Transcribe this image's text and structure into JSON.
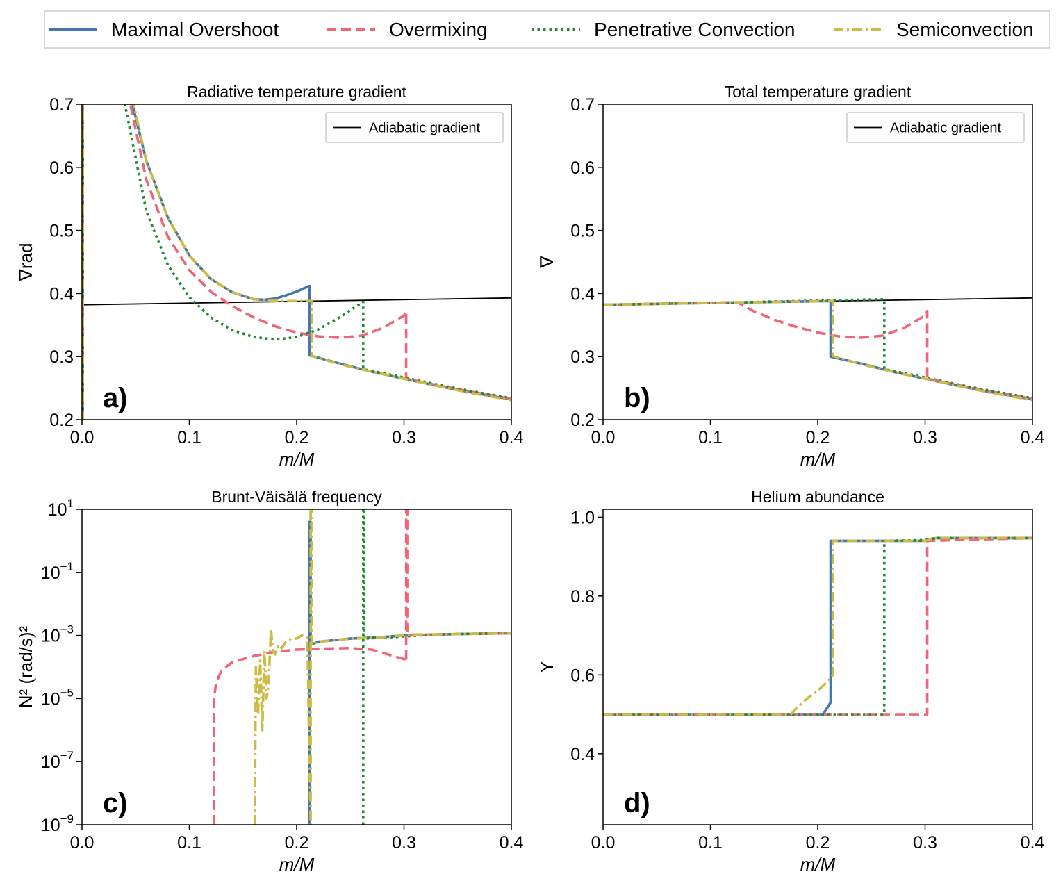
{
  "figure": {
    "legend": {
      "entries": [
        {
          "label": "Maximal Overshoot",
          "color": "#4477aa",
          "dash": "solid"
        },
        {
          "label": "Overmixing",
          "color": "#ee6677",
          "dash": "dashed"
        },
        {
          "label": "Penetrative Convection",
          "color": "#228833",
          "dash": "dotted"
        },
        {
          "label": "Semiconvection",
          "color": "#ccbb44",
          "dash": "dashdot"
        }
      ]
    }
  },
  "chart_data": [
    {
      "type": "line",
      "panel_label": "a)",
      "title": "Radiative temperature gradient",
      "xlabel": "m/M",
      "ylabel": "∇rad",
      "xlim": [
        0.0,
        0.4
      ],
      "ylim": [
        0.2,
        0.7
      ],
      "xticks": [
        "0.0",
        "0.1",
        "0.2",
        "0.3",
        "0.4"
      ],
      "yticks": [
        "0.2",
        "0.3",
        "0.4",
        "0.5",
        "0.6",
        "0.7"
      ],
      "legend": {
        "label": "Adiabatic gradient",
        "placement": "top-right"
      },
      "reference_line": {
        "name": "Adiabatic gradient",
        "color": "#000000",
        "x": [
          0.0,
          0.4
        ],
        "y": [
          0.382,
          0.393
        ]
      },
      "series": [
        {
          "name": "Maximal Overshoot",
          "x": [
            0.0,
            0.0008,
            0.0008,
            0.047,
            0.06,
            0.08,
            0.1,
            0.12,
            0.14,
            0.16,
            0.17,
            0.18,
            0.19,
            0.2,
            0.212,
            0.212,
            0.24,
            0.27,
            0.3,
            0.33,
            0.36,
            0.4
          ],
          "y": [
            0.2,
            0.2,
            0.72,
            0.7,
            0.61,
            0.52,
            0.46,
            0.423,
            0.402,
            0.391,
            0.39,
            0.392,
            0.397,
            0.403,
            0.412,
            0.302,
            0.289,
            0.276,
            0.265,
            0.254,
            0.244,
            0.232
          ]
        },
        {
          "name": "Overmixing",
          "x": [
            0.0,
            0.0008,
            0.0008,
            0.045,
            0.06,
            0.08,
            0.1,
            0.12,
            0.14,
            0.16,
            0.18,
            0.2,
            0.22,
            0.24,
            0.26,
            0.28,
            0.3,
            0.302,
            0.302,
            0.33,
            0.36,
            0.4
          ],
          "y": [
            0.2,
            0.2,
            0.72,
            0.7,
            0.58,
            0.49,
            0.437,
            0.403,
            0.38,
            0.362,
            0.348,
            0.338,
            0.332,
            0.33,
            0.333,
            0.345,
            0.365,
            0.372,
            0.265,
            0.255,
            0.245,
            0.233
          ]
        },
        {
          "name": "Penetrative Convection",
          "x": [
            0.0,
            0.0008,
            0.0008,
            0.04,
            0.06,
            0.08,
            0.1,
            0.12,
            0.14,
            0.16,
            0.18,
            0.2,
            0.22,
            0.24,
            0.262,
            0.262,
            0.3,
            0.33,
            0.36,
            0.4
          ],
          "y": [
            0.2,
            0.2,
            0.72,
            0.7,
            0.53,
            0.445,
            0.394,
            0.362,
            0.342,
            0.331,
            0.327,
            0.331,
            0.343,
            0.362,
            0.387,
            0.28,
            0.267,
            0.256,
            0.246,
            0.234
          ]
        },
        {
          "name": "Semiconvection",
          "x": [
            0.0,
            0.0008,
            0.0008,
            0.048,
            0.06,
            0.08,
            0.1,
            0.12,
            0.14,
            0.16,
            0.17,
            0.19,
            0.2,
            0.214,
            0.214,
            0.24,
            0.27,
            0.3,
            0.33,
            0.36,
            0.4
          ],
          "y": [
            0.2,
            0.2,
            0.72,
            0.7,
            0.61,
            0.52,
            0.46,
            0.423,
            0.402,
            0.391,
            0.389,
            0.388,
            0.388,
            0.388,
            0.301,
            0.288,
            0.276,
            0.265,
            0.254,
            0.243,
            0.231
          ]
        }
      ]
    },
    {
      "type": "line",
      "panel_label": "b)",
      "title": "Total temperature gradient",
      "xlabel": "m/M",
      "ylabel": "∇",
      "xlim": [
        0.0,
        0.4
      ],
      "ylim": [
        0.2,
        0.7
      ],
      "xticks": [
        "0.0",
        "0.1",
        "0.2",
        "0.3",
        "0.4"
      ],
      "yticks": [
        "0.2",
        "0.3",
        "0.4",
        "0.5",
        "0.6",
        "0.7"
      ],
      "legend": {
        "label": "Adiabatic gradient",
        "placement": "top-right"
      },
      "reference_line": {
        "name": "Adiabatic gradient",
        "color": "#000000",
        "x": [
          0.0,
          0.4
        ],
        "y": [
          0.382,
          0.393
        ]
      },
      "series": [
        {
          "name": "Maximal Overshoot",
          "x": [
            0.0,
            0.1,
            0.212,
            0.212,
            0.24,
            0.27,
            0.3,
            0.33,
            0.36,
            0.4
          ],
          "y": [
            0.382,
            0.385,
            0.388,
            0.3,
            0.289,
            0.276,
            0.265,
            0.254,
            0.244,
            0.232
          ]
        },
        {
          "name": "Overmixing",
          "x": [
            0.0,
            0.1,
            0.125,
            0.14,
            0.16,
            0.18,
            0.2,
            0.22,
            0.24,
            0.26,
            0.28,
            0.3,
            0.302,
            0.302,
            0.33,
            0.36,
            0.4
          ],
          "y": [
            0.382,
            0.385,
            0.386,
            0.372,
            0.358,
            0.347,
            0.338,
            0.332,
            0.33,
            0.333,
            0.345,
            0.365,
            0.372,
            0.265,
            0.255,
            0.245,
            0.233
          ]
        },
        {
          "name": "Penetrative Convection",
          "x": [
            0.0,
            0.1,
            0.21,
            0.262,
            0.262,
            0.3,
            0.33,
            0.36,
            0.4
          ],
          "y": [
            0.382,
            0.385,
            0.389,
            0.391,
            0.28,
            0.267,
            0.256,
            0.246,
            0.234
          ]
        },
        {
          "name": "Semiconvection",
          "x": [
            0.0,
            0.1,
            0.214,
            0.214,
            0.24,
            0.27,
            0.3,
            0.33,
            0.36,
            0.4
          ],
          "y": [
            0.382,
            0.385,
            0.388,
            0.301,
            0.288,
            0.276,
            0.265,
            0.254,
            0.243,
            0.231
          ]
        }
      ]
    },
    {
      "type": "line",
      "panel_label": "c)",
      "title": "Brunt-Väisälä frequency",
      "xlabel": "m/M",
      "ylabel": "N² (rad/s)²",
      "xlim": [
        0.0,
        0.4
      ],
      "ylim": [
        -9,
        1
      ],
      "yscale": "log10",
      "ylim_note": "log10 of N²",
      "xticks": [
        "0.0",
        "0.1",
        "0.2",
        "0.3",
        "0.4"
      ],
      "yticks": [
        {
          "base": "10",
          "exp": "1",
          "value": 1
        },
        {
          "base": "10",
          "exp": "−1",
          "value": -1
        },
        {
          "base": "10",
          "exp": "−3",
          "value": -3
        },
        {
          "base": "10",
          "exp": "−5",
          "value": -5
        },
        {
          "base": "10",
          "exp": "−7",
          "value": -7
        },
        {
          "base": "10",
          "exp": "−9",
          "value": -9
        }
      ],
      "series": [
        {
          "name": "Maximal Overshoot",
          "log10_y": true,
          "x": [
            0.212,
            0.212,
            0.213,
            0.213,
            0.22,
            0.25,
            0.28,
            0.3,
            0.33,
            0.36,
            0.4
          ],
          "y": [
            -9,
            0.6,
            0.6,
            -3.3,
            -3.2,
            -3.1,
            -3.05,
            -3.0,
            -2.97,
            -2.95,
            -2.93
          ]
        },
        {
          "name": "Overmixing",
          "log10_y": true,
          "x": [
            0.123,
            0.123,
            0.125,
            0.13,
            0.14,
            0.16,
            0.18,
            0.2,
            0.22,
            0.25,
            0.27,
            0.29,
            0.3,
            0.302,
            0.302,
            0.303,
            0.303,
            0.33,
            0.36,
            0.4
          ],
          "y": [
            -9,
            -5.0,
            -4.5,
            -4.1,
            -3.85,
            -3.65,
            -3.52,
            -3.45,
            -3.42,
            -3.4,
            -3.45,
            -3.65,
            -3.75,
            -3.85,
            1.2,
            1.2,
            -3.0,
            -2.97,
            -2.95,
            -2.93
          ]
        },
        {
          "name": "Penetrative Convection",
          "log10_y": true,
          "x": [
            0.262,
            0.262,
            0.263,
            0.263,
            0.29,
            0.33,
            0.36,
            0.4
          ],
          "y": [
            -9,
            1.2,
            1.2,
            -3.1,
            -3.05,
            -2.97,
            -2.95,
            -2.93
          ]
        },
        {
          "name": "Semiconvection",
          "log10_y": true,
          "x": [
            0.161,
            0.162,
            0.164,
            0.166,
            0.168,
            0.17,
            0.172,
            0.174,
            0.176,
            0.178,
            0.18,
            0.183,
            0.186,
            0.19,
            0.195,
            0.2,
            0.205,
            0.21,
            0.213,
            0.213,
            0.214,
            0.214,
            0.22,
            0.25,
            0.28,
            0.31,
            0.33,
            0.36,
            0.4
          ],
          "y": [
            -9,
            -4.0,
            -5.5,
            -3.8,
            -6.0,
            -3.5,
            -5.0,
            -4.5,
            -2.8,
            -3.5,
            -3.6,
            -3.3,
            -3.4,
            -3.2,
            -3.1,
            -3.1,
            -3.0,
            -3.05,
            -9,
            1.2,
            1.2,
            -3.3,
            -3.2,
            -3.1,
            -3.05,
            -2.97,
            -2.97,
            -2.95,
            -2.93
          ]
        }
      ]
    },
    {
      "type": "line",
      "panel_label": "d)",
      "title": "Helium abundance",
      "xlabel": "m/M",
      "ylabel": "Y",
      "xlim": [
        0.0,
        0.4
      ],
      "ylim": [
        0.22,
        1.02
      ],
      "xticks": [
        "0.0",
        "0.1",
        "0.2",
        "0.3",
        "0.4"
      ],
      "yticks": [
        "0.4",
        "0.6",
        "0.8",
        "1.0"
      ],
      "series": [
        {
          "name": "Maximal Overshoot",
          "x": [
            0.0,
            0.205,
            0.212,
            0.212,
            0.3,
            0.31,
            0.4
          ],
          "y": [
            0.5,
            0.5,
            0.53,
            0.94,
            0.94,
            0.947,
            0.947
          ]
        },
        {
          "name": "Overmixing",
          "x": [
            0.0,
            0.302,
            0.302,
            0.4
          ],
          "y": [
            0.5,
            0.5,
            0.94,
            0.947
          ]
        },
        {
          "name": "Penetrative Convection",
          "x": [
            0.0,
            0.262,
            0.262,
            0.3,
            0.31,
            0.4
          ],
          "y": [
            0.5,
            0.5,
            0.94,
            0.942,
            0.947,
            0.947
          ]
        },
        {
          "name": "Semiconvection",
          "x": [
            0.0,
            0.175,
            0.18,
            0.19,
            0.2,
            0.21,
            0.214,
            0.214,
            0.3,
            0.31,
            0.4
          ],
          "y": [
            0.5,
            0.5,
            0.515,
            0.54,
            0.56,
            0.585,
            0.6,
            0.94,
            0.94,
            0.947,
            0.947
          ]
        }
      ]
    }
  ]
}
